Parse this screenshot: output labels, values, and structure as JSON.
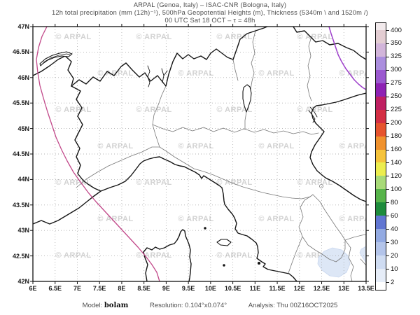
{
  "header": {
    "line1": "ARPAL (Genoa, Italy)  –  ISAC-CNR (Bologna, Italy)",
    "line2": "12h total precipitation (mm (12h)⁻¹), 500hPa Geopotential Heights (m), Thickness (5340m \\ and 1520m /)",
    "line3": "00 UTC Sat 18 OCT  –  τ = 48h"
  },
  "footer": {
    "model_label": "Model:",
    "model_value": "bolam",
    "resolution_label": "Resolution:",
    "resolution_value": "0.104°x0.074°",
    "analysis_label": "Analysis:",
    "analysis_value": "Thu 00Z16OCT2025"
  },
  "map": {
    "lat_ticks": [
      "47N",
      "46.5N",
      "46N",
      "45.5N",
      "45N",
      "44.5N",
      "44N",
      "43.5N",
      "43N",
      "42.5N",
      "42N"
    ],
    "lon_ticks": [
      "6E",
      "6.5E",
      "7E",
      "7.5E",
      "8E",
      "8.5E",
      "9E",
      "9.5E",
      "10E",
      "10.5E",
      "11E",
      "11.5E",
      "12E",
      "12.5E",
      "13E",
      "13.5E"
    ],
    "watermark_text": "© ARPAL",
    "colors": {
      "thickness_5340_line": "#c2498a",
      "thickness_1520_line": "#9d3fca",
      "precipitation_fill": "#dde7f6",
      "national_border": "#151515",
      "regional_border": "#787878",
      "grid": "#a8a8a8"
    }
  },
  "colorbar": {
    "unit": "mm (12h)⁻¹",
    "tick_values_bottom_to_top": [
      "2",
      "10",
      "20",
      "30",
      "40",
      "60",
      "80",
      "100",
      "120",
      "140",
      "160",
      "180",
      "200",
      "225",
      "250",
      "275",
      "300",
      "325",
      "350",
      "400"
    ],
    "segment_colors_bottom_to_top": [
      "#ffffff",
      "#e6edf8",
      "#cfdcf2",
      "#b3c4ea",
      "#93aae2",
      "#6176d2",
      "#1e8c3c",
      "#57b44a",
      "#a8da78",
      "#eced4e",
      "#f5c33b",
      "#f0922e",
      "#e6542e",
      "#d42f44",
      "#bf2062",
      "#8e22b4",
      "#9b59d0",
      "#ab8ede",
      "#d2b5da",
      "#e3cdd2",
      "#f2eaec"
    ]
  }
}
